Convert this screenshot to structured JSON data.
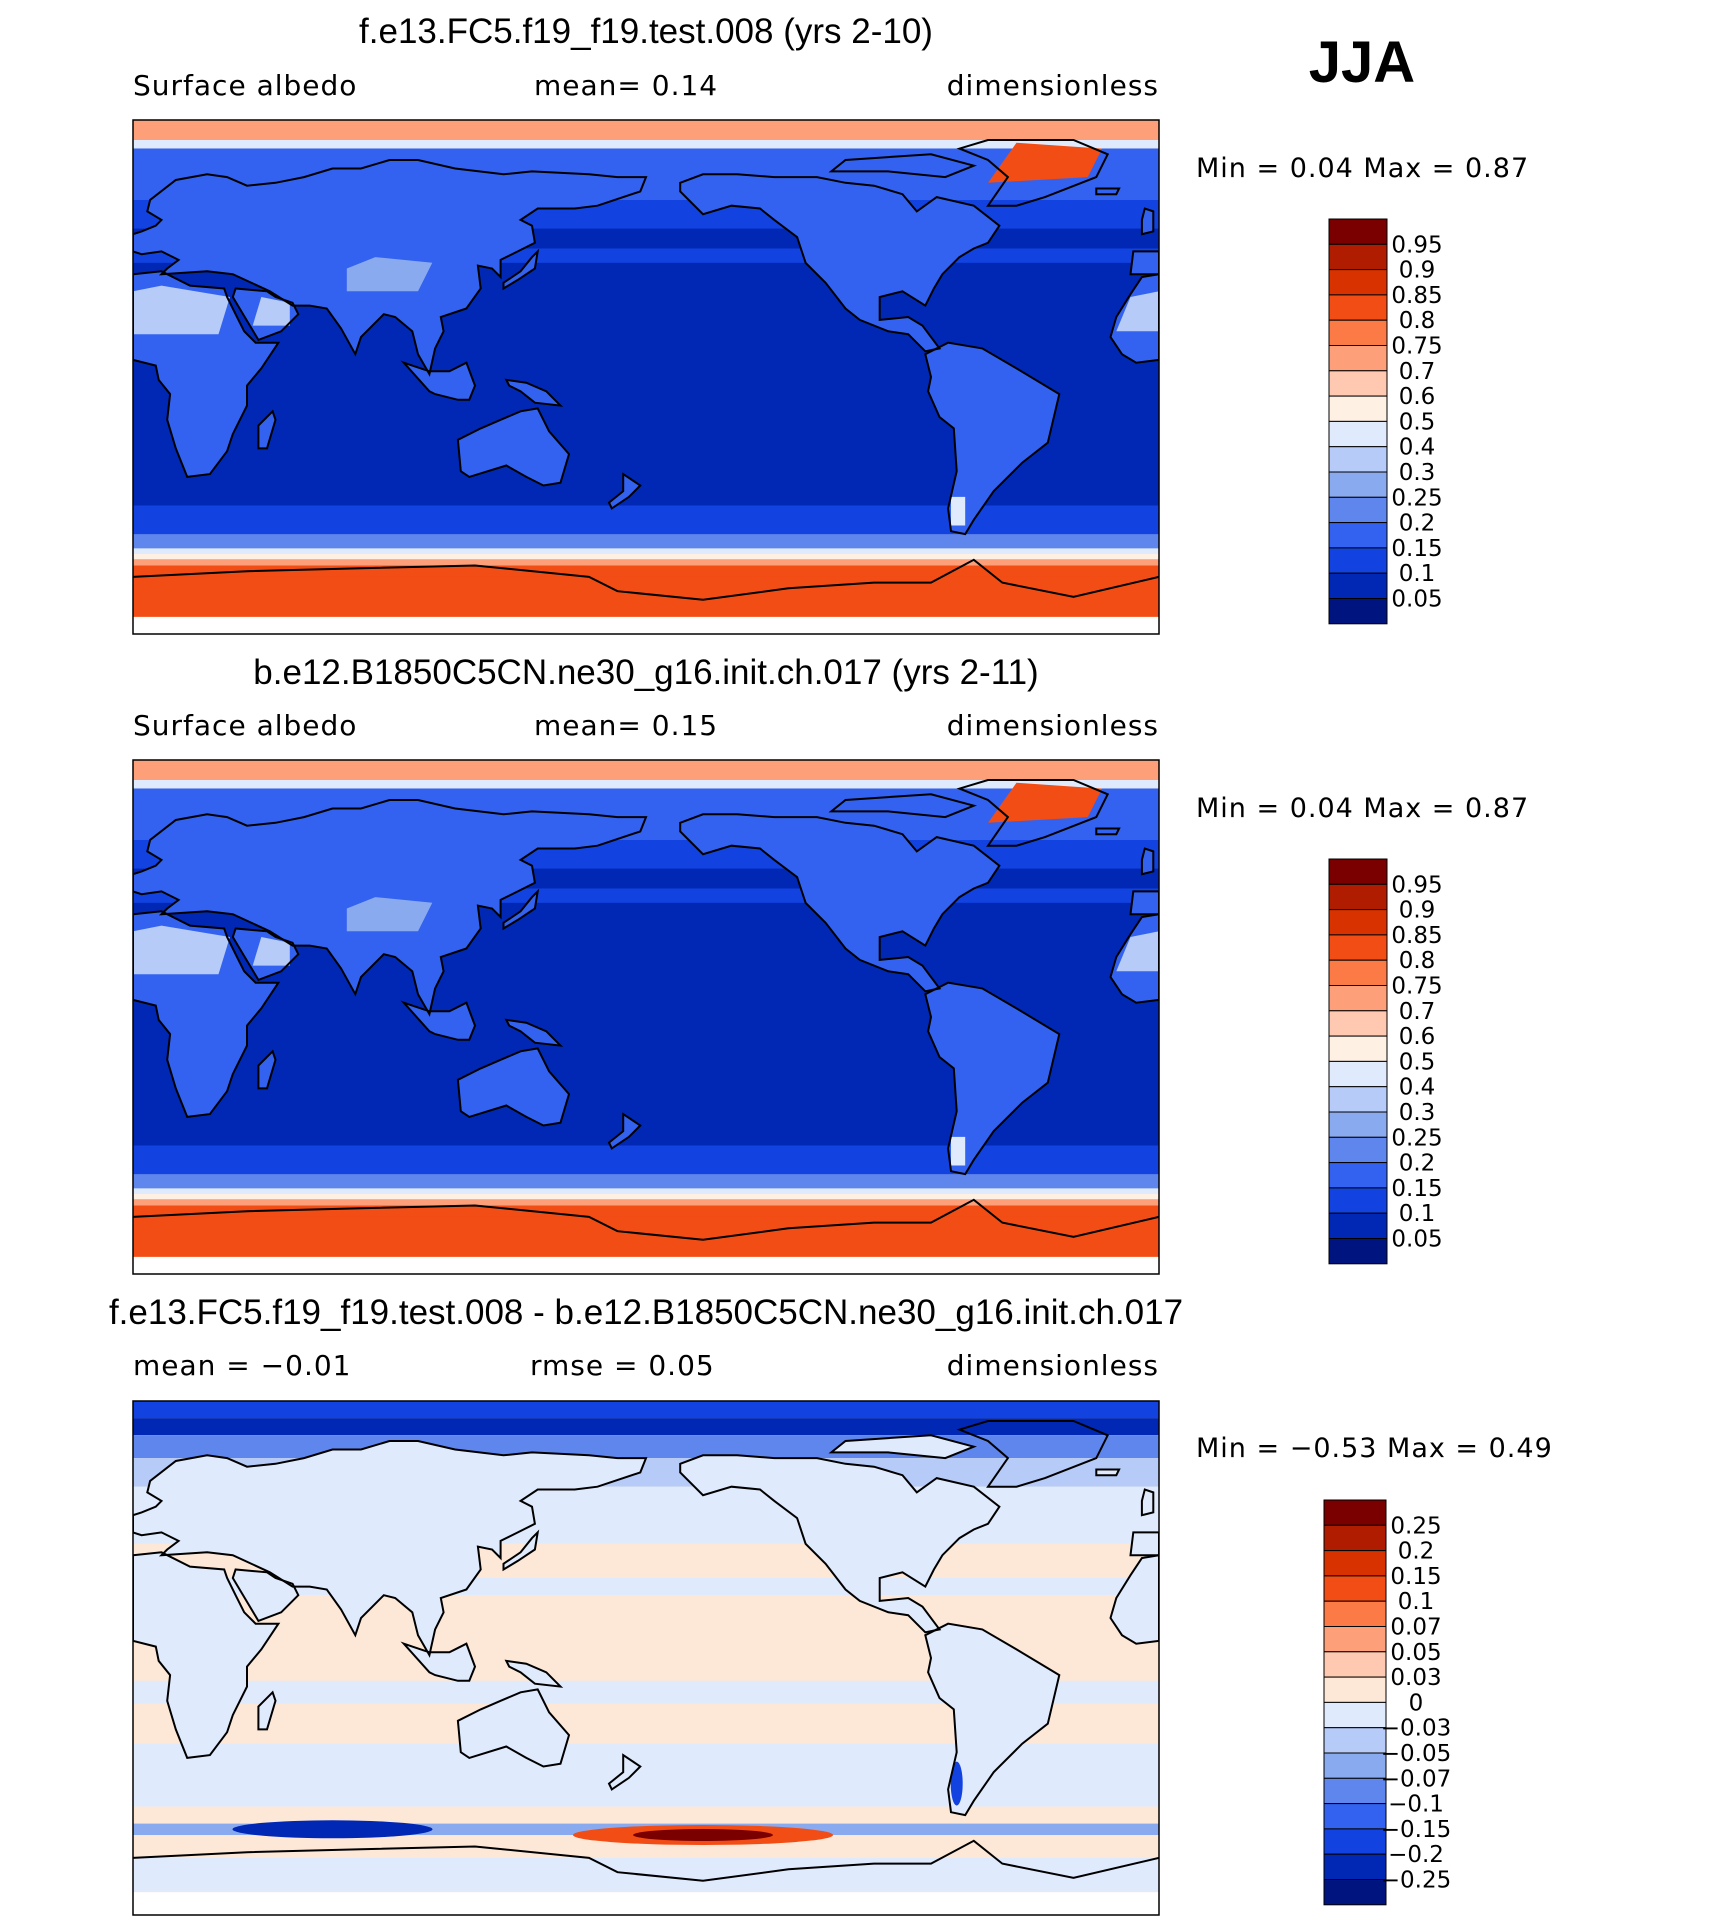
{
  "season": "JJA",
  "panels": [
    {
      "title": "f.e13.FC5.f19_f19.test.008 (yrs 2-10)",
      "left_text": "Surface albedo",
      "middle_text": "mean=    0.14",
      "right_text": "dimensionless",
      "minmax": "Min =    0.04  Max =    0.87",
      "field": "albedo",
      "colorbar": {
        "levels": [
          "0.95",
          "0.9",
          "0.85",
          "0.8",
          "0.75",
          "0.7",
          "0.6",
          "0.5",
          "0.4",
          "0.3",
          "0.25",
          "0.2",
          "0.15",
          "0.1",
          "0.05"
        ],
        "colors": [
          "#7a0000",
          "#b01c00",
          "#d83200",
          "#f24d14",
          "#fc7a45",
          "#fda07a",
          "#fec9b0",
          "#fff0e4",
          "#dfeafc",
          "#b6cbf7",
          "#8aaaf0",
          "#5f86ec",
          "#3262ef",
          "#1243e0",
          "#0028b5",
          "#001480"
        ]
      }
    },
    {
      "title": "b.e12.B1850C5CN.ne30_g16.init.ch.017 (yrs 2-11)",
      "left_text": "Surface albedo",
      "middle_text": "mean=    0.15",
      "right_text": "dimensionless",
      "minmax": "Min =    0.04  Max =    0.87",
      "field": "albedo",
      "colorbar": {
        "levels": [
          "0.95",
          "0.9",
          "0.85",
          "0.8",
          "0.75",
          "0.7",
          "0.6",
          "0.5",
          "0.4",
          "0.3",
          "0.25",
          "0.2",
          "0.15",
          "0.1",
          "0.05"
        ],
        "colors": [
          "#7a0000",
          "#b01c00",
          "#d83200",
          "#f24d14",
          "#fc7a45",
          "#fda07a",
          "#fec9b0",
          "#fff0e4",
          "#dfeafc",
          "#b6cbf7",
          "#8aaaf0",
          "#5f86ec",
          "#3262ef",
          "#1243e0",
          "#0028b5",
          "#001480"
        ]
      }
    },
    {
      "title": "f.e13.FC5.f19_f19.test.008 - b.e12.B1850C5CN.ne30_g16.init.ch.017",
      "left_text": "mean =   −0.01",
      "middle_text": "rmse =    0.05",
      "right_text": "dimensionless",
      "minmax": "Min =  −0.53  Max =    0.49",
      "field": "difference",
      "colorbar": {
        "levels": [
          "0.25",
          "0.2",
          "0.15",
          "0.1",
          "0.07",
          "0.05",
          "0.03",
          "0",
          "−0.03",
          "−0.05",
          "−0.07",
          "−0.1",
          "−0.15",
          "−0.2",
          "−0.25"
        ],
        "colors": [
          "#7a0000",
          "#b01c00",
          "#d83200",
          "#f24d14",
          "#fc7a45",
          "#fda07a",
          "#fec9b0",
          "#fde8d8",
          "#dfeafc",
          "#b6cbf7",
          "#8aaaf0",
          "#5f86ec",
          "#3262ef",
          "#1243e0",
          "#0028b5",
          "#001480"
        ]
      }
    }
  ]
}
